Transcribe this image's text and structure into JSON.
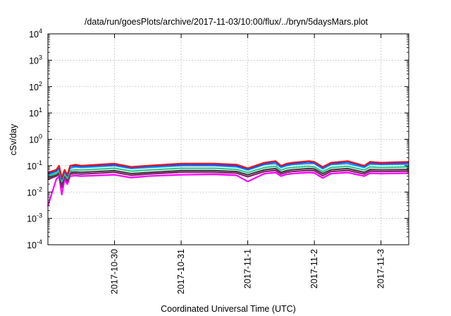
{
  "chart_data": {
    "type": "line",
    "title": "/data/run/goesPlots/archive/2017-11-03/10:00/flux/../bryn/5daysMars.plot",
    "xlabel": "Coordinated Universal Time (UTC)",
    "ylabel": "cSv/day",
    "y_scale": "log",
    "ylim": [
      0.0001,
      10000
    ],
    "xlim": [
      "2017-10-29T00:00",
      "2017-11-03T10:00"
    ],
    "grid": true,
    "legend": "none",
    "x_ticks": [
      "2017-10-30",
      "2017-10-31",
      "2017-11-1",
      "2017-11-2",
      "2017-11-3"
    ],
    "y_ticks": [
      {
        "base": "10",
        "exp": "-4"
      },
      {
        "base": "10",
        "exp": "-3"
      },
      {
        "base": "10",
        "exp": "-2"
      },
      {
        "base": "10",
        "exp": "-1"
      },
      {
        "base": "10",
        "exp": "0"
      },
      {
        "base": "10",
        "exp": "1"
      },
      {
        "base": "10",
        "exp": "2"
      },
      {
        "base": "10",
        "exp": "3"
      },
      {
        "base": "10",
        "exp": "4"
      }
    ],
    "x": [
      "2017-10-29T00:00",
      "2017-10-29T03:00",
      "2017-10-29T04:00",
      "2017-10-29T05:00",
      "2017-10-29T06:00",
      "2017-10-29T07:00",
      "2017-10-29T08:00",
      "2017-10-29T10:00",
      "2017-10-29T12:00",
      "2017-10-30T00:00",
      "2017-10-30T06:00",
      "2017-10-30T12:00",
      "2017-10-31T00:00",
      "2017-10-31T12:00",
      "2017-10-31T20:00",
      "2017-11-01T00:00",
      "2017-11-01T06:00",
      "2017-11-01T10:00",
      "2017-11-01T12:00",
      "2017-11-01T14:00",
      "2017-11-01T16:00",
      "2017-11-01T22:00",
      "2017-11-02T00:00",
      "2017-11-02T03:00",
      "2017-11-02T06:00",
      "2017-11-02T12:00",
      "2017-11-02T18:00",
      "2017-11-02T20:00",
      "2017-11-03T00:00",
      "2017-11-03T10:00"
    ],
    "series": [
      {
        "color": "#e41a1c",
        "values": [
          0.055,
          0.07,
          0.1,
          0.035,
          0.07,
          0.045,
          0.1,
          0.11,
          0.1,
          0.12,
          0.09,
          0.1,
          0.12,
          0.12,
          0.11,
          0.08,
          0.13,
          0.15,
          0.1,
          0.12,
          0.13,
          0.15,
          0.14,
          0.09,
          0.13,
          0.15,
          0.1,
          0.14,
          0.13,
          0.14
        ]
      },
      {
        "color": "#3030ff",
        "values": [
          0.05,
          0.065,
          0.09,
          0.032,
          0.065,
          0.042,
          0.095,
          0.1,
          0.095,
          0.11,
          0.085,
          0.095,
          0.11,
          0.11,
          0.1,
          0.075,
          0.12,
          0.14,
          0.095,
          0.11,
          0.12,
          0.14,
          0.13,
          0.085,
          0.12,
          0.14,
          0.095,
          0.13,
          0.12,
          0.13
        ]
      },
      {
        "color": "#00a0ff",
        "values": [
          0.045,
          0.06,
          0.08,
          0.03,
          0.06,
          0.04,
          0.08,
          0.09,
          0.085,
          0.1,
          0.078,
          0.085,
          0.1,
          0.1,
          0.09,
          0.068,
          0.11,
          0.12,
          0.085,
          0.1,
          0.11,
          0.12,
          0.12,
          0.075,
          0.11,
          0.12,
          0.085,
          0.115,
          0.11,
          0.115
        ]
      },
      {
        "color": "#30c890",
        "values": [
          0.04,
          0.05,
          0.065,
          0.025,
          0.05,
          0.033,
          0.065,
          0.07,
          0.068,
          0.08,
          0.062,
          0.068,
          0.08,
          0.08,
          0.072,
          0.055,
          0.085,
          0.095,
          0.068,
          0.08,
          0.085,
          0.095,
          0.09,
          0.06,
          0.085,
          0.095,
          0.068,
          0.09,
          0.085,
          0.09
        ]
      },
      {
        "color": "#404040",
        "values": [
          0.035,
          0.045,
          0.055,
          0.02,
          0.045,
          0.03,
          0.055,
          0.058,
          0.056,
          0.065,
          0.05,
          0.055,
          0.065,
          0.065,
          0.06,
          0.045,
          0.07,
          0.078,
          0.056,
          0.065,
          0.07,
          0.078,
          0.075,
          0.05,
          0.07,
          0.078,
          0.056,
          0.072,
          0.07,
          0.072
        ]
      },
      {
        "color": "#8a2070",
        "values": [
          0.03,
          0.04,
          0.048,
          0.015,
          0.04,
          0.025,
          0.048,
          0.05,
          0.048,
          0.056,
          0.043,
          0.048,
          0.056,
          0.056,
          0.052,
          0.038,
          0.06,
          0.066,
          0.048,
          0.056,
          0.06,
          0.066,
          0.064,
          0.042,
          0.06,
          0.066,
          0.048,
          0.062,
          0.06,
          0.062
        ]
      },
      {
        "color": "#ff00ff",
        "values": [
          0.003,
          0.03,
          0.04,
          0.008,
          0.03,
          0.02,
          0.04,
          0.042,
          0.04,
          0.045,
          0.035,
          0.04,
          0.045,
          0.047,
          0.043,
          0.025,
          0.05,
          0.055,
          0.04,
          0.047,
          0.05,
          0.055,
          0.053,
          0.034,
          0.05,
          0.055,
          0.04,
          0.052,
          0.05,
          0.052
        ]
      }
    ]
  }
}
